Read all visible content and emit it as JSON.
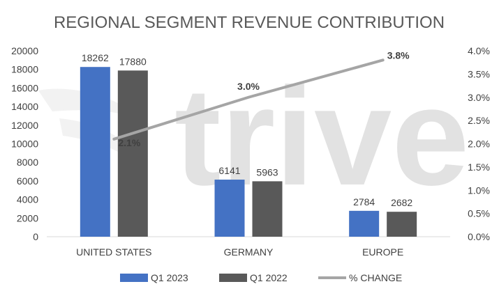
{
  "chart_data": {
    "type": "bar",
    "title": "REGIONAL SEGMENT REVENUE CONTRIBUTION",
    "categories": [
      "UNITED STATES",
      "GERMANY",
      "EUROPE"
    ],
    "series": [
      {
        "name": "Q1 2023",
        "type": "bar",
        "axis": "left",
        "color": "#4472c4",
        "values": [
          18262,
          6141,
          2784
        ]
      },
      {
        "name": "Q1 2022",
        "type": "bar",
        "axis": "left",
        "color": "#595959",
        "values": [
          17880,
          5963,
          2682
        ]
      },
      {
        "name": "% CHANGE",
        "type": "line",
        "axis": "right",
        "color": "#a5a5a5",
        "values": [
          0.021,
          0.03,
          0.038
        ],
        "labels": [
          "2.1%",
          "3.0%",
          "3.8%"
        ]
      }
    ],
    "y_left": {
      "min": 0,
      "max": 20000,
      "ticks": [
        "0",
        "2000",
        "4000",
        "6000",
        "8000",
        "10000",
        "12000",
        "14000",
        "16000",
        "18000",
        "20000"
      ]
    },
    "y_right": {
      "min": 0,
      "max": 0.04,
      "ticks": [
        "0.0%",
        "0.5%",
        "1.0%",
        "1.5%",
        "2.0%",
        "2.5%",
        "3.0%",
        "3.5%",
        "4.0%"
      ]
    },
    "grid": false,
    "legend": "bottom",
    "watermark": "trive"
  }
}
